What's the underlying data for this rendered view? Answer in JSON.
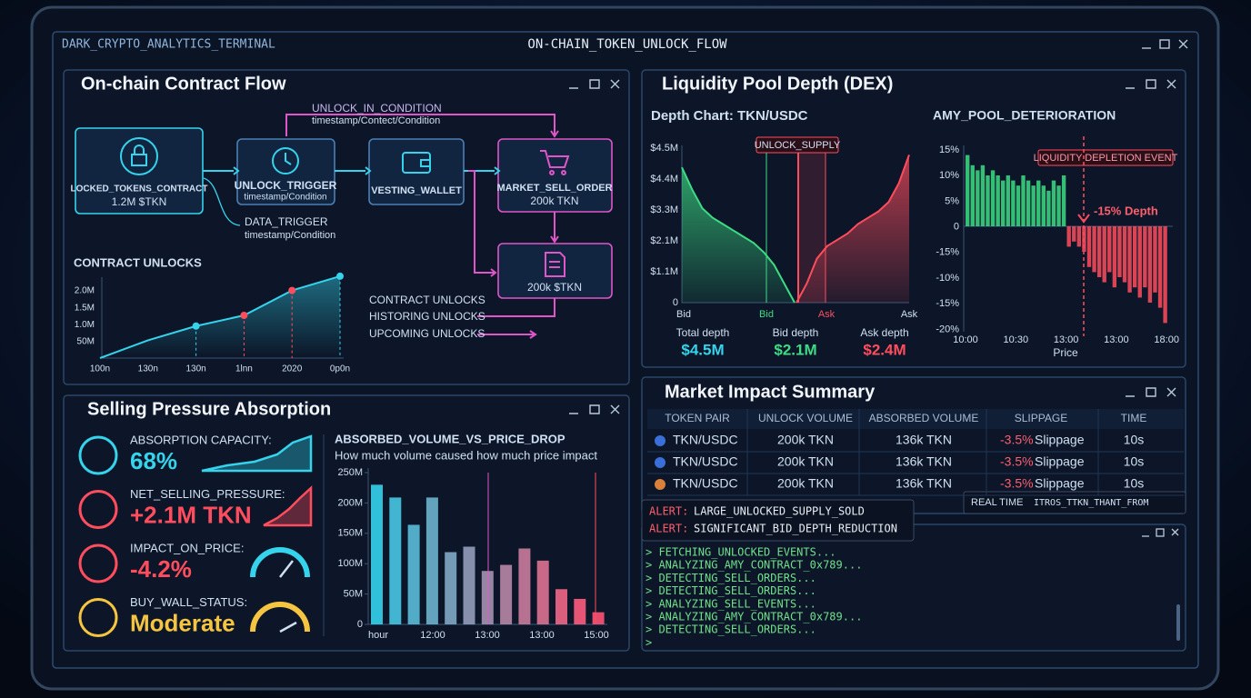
{
  "window": {
    "app_name": "DARK_CRYPTO_ANALYTICS_TERMINAL",
    "title": "ON-CHAIN_TOKEN_UNLOCK_FLOW"
  },
  "contract_flow": {
    "title": "On-chain Contract Flow",
    "nodes": [
      {
        "label": "LOCKED_TOKENS_CONTRACT",
        "detail": "1.2M $TKN"
      },
      {
        "label": "UNLOCK_TRIGGER",
        "detail": "timestamp/Condition"
      },
      {
        "label": "VESTING_WALLET"
      },
      {
        "label": "MARKET_SELL_ORDER",
        "detail": "200k TKN"
      },
      {
        "label": "200k $TKN"
      }
    ],
    "conditions": [
      {
        "label": "UNLOCK_IN_CONDITION",
        "detail": "timestamp/Contect/Condition"
      },
      {
        "label": "DATA_TRIGGER",
        "detail": "timestamp/Condition"
      }
    ],
    "legend": [
      "CONTRACT UNLOCKS",
      "HISTORING UNLOCKS",
      "UPCOMING UNLOCKS"
    ]
  },
  "contract_unlocks": {
    "type": "line",
    "title": "CONTRACT UNLOCKS",
    "categories": [
      "100n",
      "130n",
      "130n",
      "1lnn",
      "2020",
      "0p0n"
    ],
    "values": [
      0,
      0.5,
      0.9,
      1.2,
      1.9,
      2.3
    ],
    "ylim": [
      0,
      2.4
    ],
    "y_labels": [
      "2.0M",
      "1.5M",
      "1.0M",
      "50M"
    ],
    "color": "#35d3ec"
  },
  "liquidity": {
    "title": "Liquidity Pool Depth (DEX)",
    "depth_chart": {
      "type": "area",
      "title": "Depth Chart: TKN/USDC",
      "annotation": "UNLOCK_SUPPLY",
      "y_labels": [
        "$4.5M",
        "$4.4M",
        "$3.3M",
        "$2.1M",
        "$1.1M",
        "0"
      ],
      "x_labels": [
        "Bid",
        "Bid",
        "Ask",
        "Ask"
      ],
      "ylim": [
        0,
        5
      ],
      "series": [
        {
          "name": "Bid",
          "color": "#3ddc84",
          "values": [
            4.3,
            3.6,
            3.0,
            2.7,
            2.5,
            2.3,
            2.1,
            1.9,
            1.6,
            1.2,
            0.6,
            0
          ]
        },
        {
          "name": "Ask",
          "color": "#ff4d5e",
          "values": [
            0,
            0.6,
            1.4,
            1.8,
            2.0,
            2.2,
            2.5,
            2.7,
            2.9,
            3.2,
            3.8,
            4.7
          ]
        }
      ],
      "stats": [
        {
          "label": "Total depth",
          "value": "$4.5M"
        },
        {
          "label": "Bid depth",
          "value": "$2.1M"
        },
        {
          "label": "Ask depth",
          "value": "$2.4M"
        }
      ]
    },
    "deterioration": {
      "type": "bar",
      "title": "AMY_POOL_DETERIORATION",
      "annotation": "LIQUIDITY DEPLETION EVENT",
      "marker": "-15% Depth",
      "y_labels": [
        "15%",
        "10%",
        "5%",
        "0",
        "-15%",
        "-10%",
        "-15%",
        "-20%"
      ],
      "x_labels": [
        "10:00",
        "10:30",
        "13:00",
        "13:00",
        "18:00"
      ],
      "x_title": "Price",
      "ylim": [
        -20,
        15
      ],
      "values": [
        14,
        12,
        11,
        12,
        10,
        11,
        10,
        9,
        10,
        9,
        8,
        10,
        9,
        8,
        9,
        8,
        7,
        9,
        8,
        10,
        -4,
        -3,
        -4,
        -5,
        -8,
        -9,
        -10,
        -11,
        -9,
        -12,
        -10,
        -11,
        -13,
        -12,
        -14,
        -12,
        -15,
        -13,
        -16,
        -19
      ]
    }
  },
  "selling": {
    "title": "Selling Pressure Absorption",
    "metrics": [
      {
        "label": "ABSORPTION CAPACITY:",
        "value": "68%"
      },
      {
        "label": "NET_SELLING_PRESSURE:",
        "value": "+2.1M TKN"
      },
      {
        "label": "IMPACT_ON_PRICE:",
        "value": "-4.2%"
      },
      {
        "label": "BUY_WALL_STATUS:",
        "value": "Moderate"
      }
    ],
    "chart": {
      "type": "bar",
      "title": "ABSORBED_VOLUME_VS_PRICE_DROP",
      "subtitle": "How much volume caused how much price impact",
      "x_labels": [
        "hour",
        "12:00",
        "13:00",
        "13:00",
        "15:00"
      ],
      "values": [
        230,
        209,
        164,
        209,
        119,
        128,
        88,
        98,
        125,
        105,
        58,
        42,
        20
      ],
      "ylim": [
        0,
        250
      ],
      "yticks": [
        0,
        {
          "value": 50,
          "label": "50M"
        },
        {
          "value": 100,
          "label": "100M"
        },
        {
          "value": 150,
          "label": "150M"
        },
        {
          "value": 200,
          "label": "200M"
        },
        {
          "value": 250,
          "label": "250M"
        }
      ]
    }
  },
  "market_impact": {
    "title": "Market Impact Summary",
    "columns": [
      "TOKEN PAIR",
      "UNLOCK VOLUME",
      "ABSORBED VOLUME",
      "SLIPPAGE",
      "TIME"
    ],
    "rows": [
      {
        "pair": "TKN/USDC",
        "unlock": "200k TKN",
        "absorbed": "136k TKN",
        "slippage": "-3.5%",
        "slippage_text": "Slippage",
        "time": "10s"
      },
      {
        "pair": "TKN/USDC",
        "unlock": "200k TKN",
        "absorbed": "136k TKN",
        "slippage": "-3.5%",
        "slippage_text": "Slippage",
        "time": "10s"
      },
      {
        "pair": "TKN/USDC",
        "unlock": "200k TKN",
        "absorbed": "136k TKN",
        "slippage": "-3.5%",
        "slippage_text": "Slippage",
        "time": "10s"
      }
    ],
    "footer": [
      "REAL TIME",
      "ITROS_TTKN_THANT_FROM"
    ]
  },
  "alerts": [
    {
      "level": "ALERT:",
      "message": "LARGE_UNLOCKED_SUPPLY_SOLD"
    },
    {
      "level": "ALERT:",
      "message": "SIGNIFICANT_BID_DEPTH_REDUCTION"
    }
  ],
  "console": [
    "> FETCHING_UNLOCKED_EVENTS...",
    "> ANALYZING_AMY_CONTRACT_0x789...",
    "> DETECTING_SELL_ORDERS...",
    "> DETECTING_SELL_ORDERS...",
    "> ANALYZING_SELL_EVENTS...",
    "> ANALYZING_AMY_CONTRACT_0x789...",
    "> DETECTING_SELL_ORDERS...",
    ">"
  ]
}
